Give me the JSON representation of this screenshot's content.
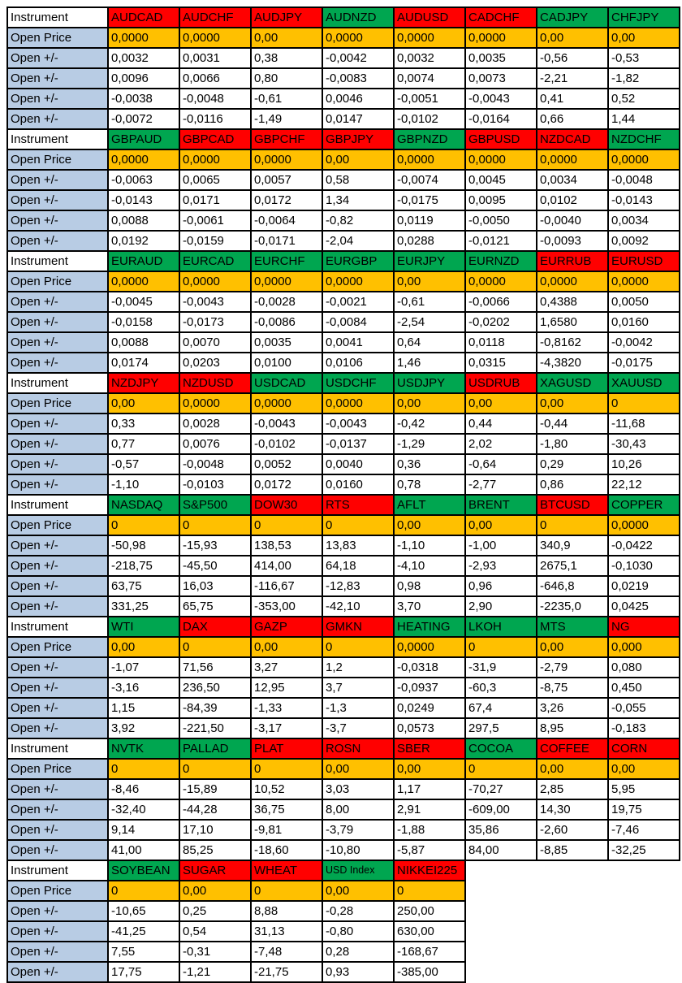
{
  "labels": {
    "instrument": "Instrument",
    "open_price": "Open Price",
    "open_change": "Open +/-"
  },
  "colors": {
    "up_green": "#00a650",
    "down_red": "#ff0000",
    "price_orange": "#ffc000",
    "label_blue": "#b8cce4",
    "border_black": "#000000"
  },
  "blocks": [
    {
      "instruments": [
        {
          "name": "AUDCAD",
          "color": "red"
        },
        {
          "name": "AUDCHF",
          "color": "red"
        },
        {
          "name": "AUDJPY",
          "color": "red"
        },
        {
          "name": "AUDNZD",
          "color": "green"
        },
        {
          "name": "AUDUSD",
          "color": "red"
        },
        {
          "name": "CADCHF",
          "color": "red"
        },
        {
          "name": "CADJPY",
          "color": "green"
        },
        {
          "name": "CHFJPY",
          "color": "green"
        }
      ],
      "open_price": [
        "0,0000",
        "0,0000",
        "0,00",
        "0,0000",
        "0,0000",
        "0,0000",
        "0,00",
        "0,00"
      ],
      "changes": [
        [
          "0,0032",
          "0,0031",
          "0,38",
          "-0,0042",
          "0,0032",
          "0,0035",
          "-0,56",
          "-0,53"
        ],
        [
          "0,0096",
          "0,0066",
          "0,80",
          "-0,0083",
          "0,0074",
          "0,0073",
          "-2,21",
          "-1,82"
        ],
        [
          "-0,0038",
          "-0,0048",
          "-0,61",
          "0,0046",
          "-0,0051",
          "-0,0043",
          "0,41",
          "0,52"
        ],
        [
          "-0,0072",
          "-0,0116",
          "-1,49",
          "0,0147",
          "-0,0102",
          "-0,0164",
          "0,66",
          "1,44"
        ]
      ]
    },
    {
      "instruments": [
        {
          "name": "GBPAUD",
          "color": "green"
        },
        {
          "name": "GBPCAD",
          "color": "red"
        },
        {
          "name": "GBPCHF",
          "color": "red"
        },
        {
          "name": "GBPJPY",
          "color": "red"
        },
        {
          "name": "GBPNZD",
          "color": "green"
        },
        {
          "name": "GBPUSD",
          "color": "red"
        },
        {
          "name": "NZDCAD",
          "color": "red"
        },
        {
          "name": "NZDCHF",
          "color": "green"
        }
      ],
      "open_price": [
        "0,0000",
        "0,0000",
        "0,0000",
        "0,00",
        "0,0000",
        "0,0000",
        "0,0000",
        "0,0000"
      ],
      "changes": [
        [
          "-0,0063",
          "0,0065",
          "0,0057",
          "0,58",
          "-0,0074",
          "0,0045",
          "0,0034",
          "-0,0048"
        ],
        [
          "-0,0143",
          "0,0171",
          "0,0172",
          "1,34",
          "-0,0175",
          "0,0095",
          "0,0102",
          "-0,0143"
        ],
        [
          "0,0088",
          "-0,0061",
          "-0,0064",
          "-0,82",
          "0,0119",
          "-0,0050",
          "-0,0040",
          "0,0034"
        ],
        [
          "0,0192",
          "-0,0159",
          "-0,0171",
          "-2,04",
          "0,0288",
          "-0,0121",
          "-0,0093",
          "0,0092"
        ]
      ]
    },
    {
      "instruments": [
        {
          "name": "EURAUD",
          "color": "green"
        },
        {
          "name": "EURCAD",
          "color": "green"
        },
        {
          "name": "EURCHF",
          "color": "green"
        },
        {
          "name": "EURGBP",
          "color": "green"
        },
        {
          "name": "EURJPY",
          "color": "green"
        },
        {
          "name": "EURNZD",
          "color": "green"
        },
        {
          "name": "EURRUB",
          "color": "red"
        },
        {
          "name": "EURUSD",
          "color": "red"
        }
      ],
      "open_price": [
        "0,0000",
        "0,0000",
        "0,0000",
        "0,0000",
        "0,00",
        "0,0000",
        "0,0000",
        "0,0000"
      ],
      "changes": [
        [
          "-0,0045",
          "-0,0043",
          "-0,0028",
          "-0,0021",
          "-0,61",
          "-0,0066",
          "0,4388",
          "0,0050"
        ],
        [
          "-0,0158",
          "-0,0173",
          "-0,0086",
          "-0,0084",
          "-2,54",
          "-0,0202",
          "1,6580",
          "0,0160"
        ],
        [
          "0,0088",
          "0,0070",
          "0,0035",
          "0,0041",
          "0,64",
          "0,0118",
          "-0,8162",
          "-0,0042"
        ],
        [
          "0,0174",
          "0,0203",
          "0,0100",
          "0,0106",
          "1,46",
          "0,0315",
          "-4,3820",
          "-0,0175"
        ]
      ]
    },
    {
      "instruments": [
        {
          "name": "NZDJPY",
          "color": "red"
        },
        {
          "name": "NZDUSD",
          "color": "red"
        },
        {
          "name": "USDCAD",
          "color": "green"
        },
        {
          "name": "USDCHF",
          "color": "green"
        },
        {
          "name": "USDJPY",
          "color": "green"
        },
        {
          "name": "USDRUB",
          "color": "red"
        },
        {
          "name": "XAGUSD",
          "color": "green"
        },
        {
          "name": "XAUUSD",
          "color": "green"
        }
      ],
      "open_price": [
        "0,00",
        "0,0000",
        "0,0000",
        "0,0000",
        "0,00",
        "0,00",
        "0,00",
        "0"
      ],
      "changes": [
        [
          "0,33",
          "0,0028",
          "-0,0043",
          "-0,0043",
          "-0,42",
          "0,44",
          "-0,44",
          "-11,68"
        ],
        [
          "0,77",
          "0,0076",
          "-0,0102",
          "-0,0137",
          "-1,29",
          "2,02",
          "-1,80",
          "-30,43"
        ],
        [
          "-0,57",
          "-0,0048",
          "0,0052",
          "0,0040",
          "0,36",
          "-0,64",
          "0,29",
          "10,26"
        ],
        [
          "-1,10",
          "-0,0103",
          "0,0172",
          "0,0160",
          "0,78",
          "-2,77",
          "0,86",
          "22,12"
        ]
      ]
    },
    {
      "instruments": [
        {
          "name": "NASDAQ",
          "color": "green"
        },
        {
          "name": "S&P500",
          "color": "green"
        },
        {
          "name": "DOW30",
          "color": "red"
        },
        {
          "name": "RTS",
          "color": "red"
        },
        {
          "name": "AFLT",
          "color": "green"
        },
        {
          "name": "BRENT",
          "color": "green"
        },
        {
          "name": "BTCUSD",
          "color": "red"
        },
        {
          "name": "COPPER",
          "color": "green"
        }
      ],
      "open_price": [
        "0",
        "0",
        "0",
        "0",
        "0,00",
        "0,00",
        "0",
        "0,0000"
      ],
      "changes": [
        [
          "-50,98",
          "-15,93",
          "138,53",
          "13,83",
          "-1,10",
          "-1,00",
          "340,9",
          "-0,0422"
        ],
        [
          "-218,75",
          "-45,50",
          "414,00",
          "64,18",
          "-4,10",
          "-2,93",
          "2675,1",
          "-0,1030"
        ],
        [
          "63,75",
          "16,03",
          "-116,67",
          "-12,83",
          "0,98",
          "0,96",
          "-646,8",
          "0,0219"
        ],
        [
          "331,25",
          "65,75",
          "-353,00",
          "-42,10",
          "3,70",
          "2,90",
          "-2235,0",
          "0,0425"
        ]
      ]
    },
    {
      "instruments": [
        {
          "name": "WTI",
          "color": "green"
        },
        {
          "name": "DAX",
          "color": "red"
        },
        {
          "name": "GAZP",
          "color": "red"
        },
        {
          "name": "GMKN",
          "color": "red"
        },
        {
          "name": "HEATING",
          "color": "green"
        },
        {
          "name": "LKOH",
          "color": "green"
        },
        {
          "name": "MTS",
          "color": "green"
        },
        {
          "name": "NG",
          "color": "red"
        }
      ],
      "open_price": [
        "0,00",
        "0",
        "0,00",
        "0",
        "0,0000",
        "0",
        "0,00",
        "0,000"
      ],
      "changes": [
        [
          "-1,07",
          "71,56",
          "3,27",
          "1,2",
          "-0,0318",
          "-31,9",
          "-2,79",
          "0,080"
        ],
        [
          "-3,16",
          "236,50",
          "12,95",
          "3,7",
          "-0,0937",
          "-60,3",
          "-8,75",
          "0,450"
        ],
        [
          "1,15",
          "-84,39",
          "-1,33",
          "-1,3",
          "0,0249",
          "67,4",
          "3,26",
          "-0,055"
        ],
        [
          "3,92",
          "-221,50",
          "-3,17",
          "-3,7",
          "0,0573",
          "297,5",
          "8,95",
          "-0,183"
        ]
      ]
    },
    {
      "instruments": [
        {
          "name": "NVTK",
          "color": "green"
        },
        {
          "name": "PALLAD",
          "color": "green"
        },
        {
          "name": "PLAT",
          "color": "red"
        },
        {
          "name": "ROSN",
          "color": "red"
        },
        {
          "name": "SBER",
          "color": "red"
        },
        {
          "name": "COCOA",
          "color": "green"
        },
        {
          "name": "COFFEE",
          "color": "red"
        },
        {
          "name": "CORN",
          "color": "red"
        }
      ],
      "open_price": [
        "0",
        "0",
        "0",
        "0,00",
        "0,00",
        "0",
        "0,00",
        "0,00"
      ],
      "changes": [
        [
          "-8,46",
          "-15,89",
          "10,52",
          "3,03",
          "1,17",
          "-70,27",
          "2,85",
          "5,95"
        ],
        [
          "-32,40",
          "-44,28",
          "36,75",
          "8,00",
          "2,91",
          "-609,00",
          "14,30",
          "19,75"
        ],
        [
          "9,14",
          "17,10",
          "-9,81",
          "-3,79",
          "-1,88",
          "35,86",
          "-2,60",
          "-7,46"
        ],
        [
          "41,00",
          "85,25",
          "-18,60",
          "-10,80",
          "-5,87",
          "84,00",
          "-8,85",
          "-32,25"
        ]
      ]
    },
    {
      "instruments": [
        {
          "name": "SOYBEAN",
          "color": "green"
        },
        {
          "name": "SUGAR",
          "color": "red"
        },
        {
          "name": "WHEAT",
          "color": "red"
        },
        {
          "name": "USD Index",
          "color": "green",
          "small": true
        },
        {
          "name": "NIKKEI225",
          "color": "red"
        }
      ],
      "open_price": [
        "0",
        "0,00",
        "0",
        "0,00",
        "0"
      ],
      "changes": [
        [
          "-10,65",
          "0,25",
          "8,88",
          "-0,28",
          "250,00"
        ],
        [
          "-41,25",
          "0,54",
          "31,13",
          "-0,80",
          "630,00"
        ],
        [
          "7,55",
          "-0,31",
          "-7,48",
          "0,28",
          "-168,67"
        ],
        [
          "17,75",
          "-1,21",
          "-21,75",
          "0,93",
          "-385,00"
        ]
      ]
    }
  ]
}
